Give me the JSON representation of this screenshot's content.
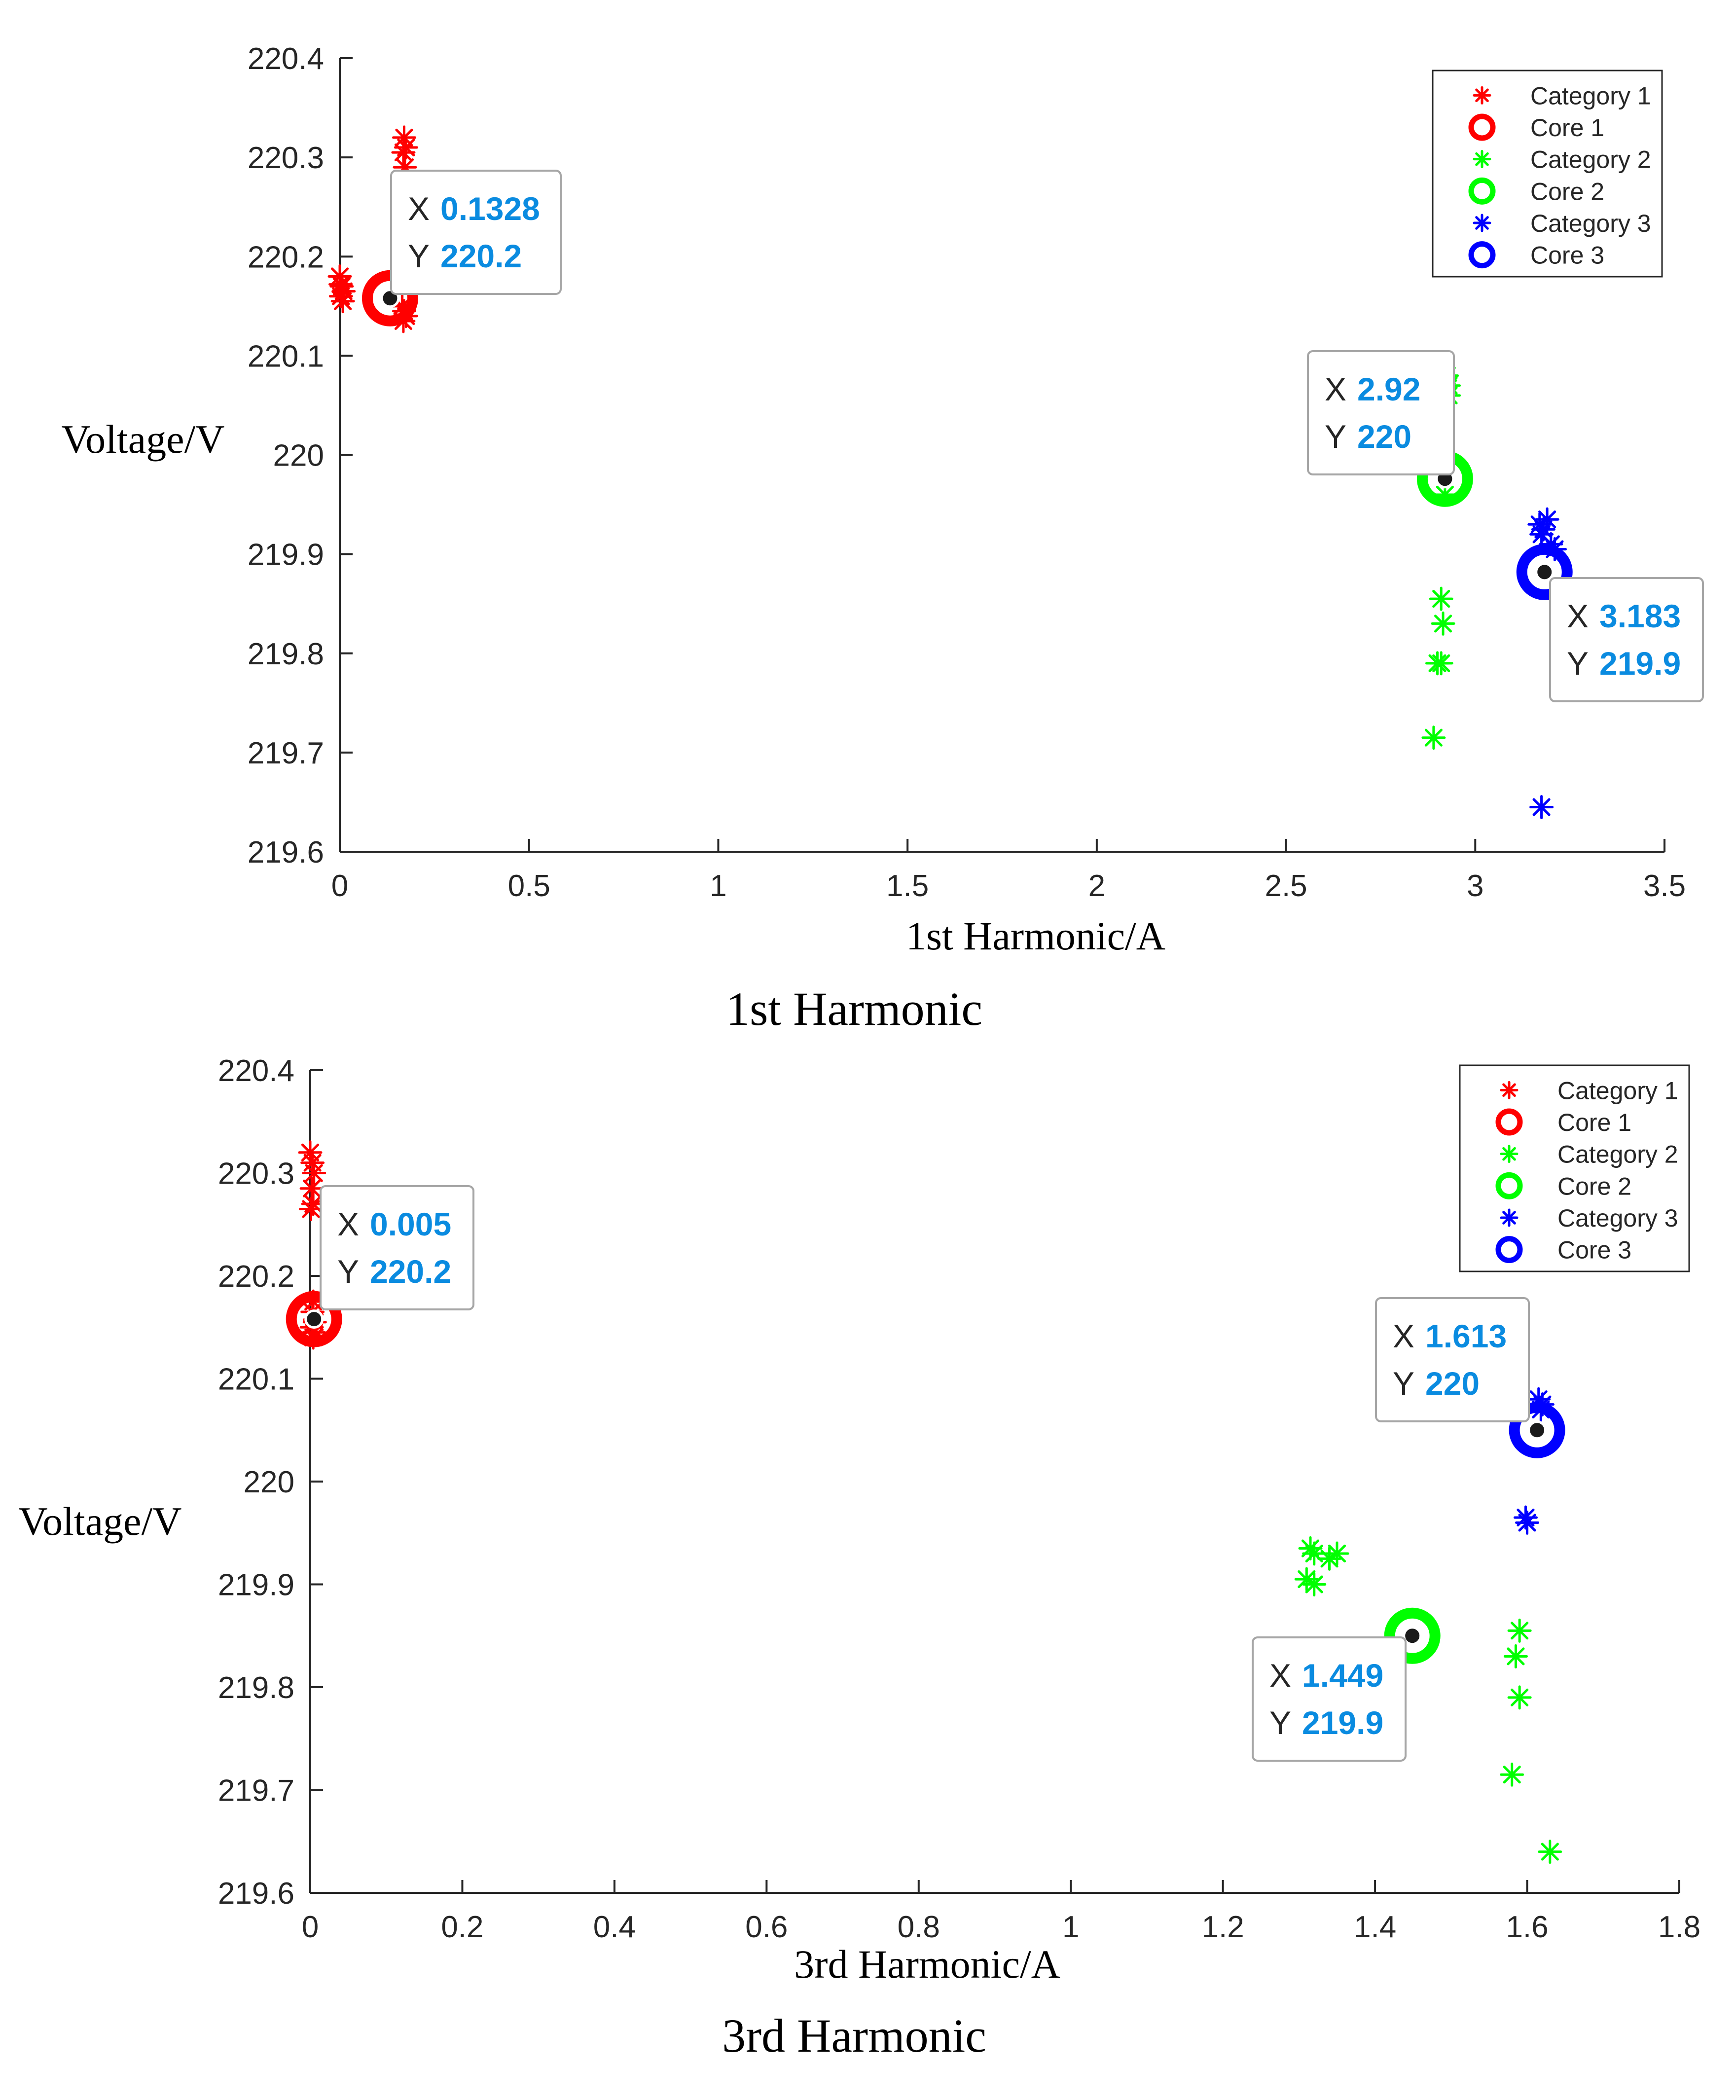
{
  "chart_data": [
    {
      "type": "scatter",
      "title": "1st Harmonic",
      "xlabel": "1st Harmonic/A",
      "ylabel": "Voltage/V",
      "xlim": [
        0,
        3.5
      ],
      "ylim": [
        219.6,
        220.4
      ],
      "xticks": [
        0,
        0.5,
        1,
        1.5,
        2,
        2.5,
        3,
        3.5
      ],
      "xtick_labels": [
        "0",
        "0.5",
        "1",
        "1.5",
        "2",
        "2.5",
        "3",
        "3.5"
      ],
      "yticks": [
        219.6,
        219.7,
        219.8,
        219.9,
        220,
        220.1,
        220.2,
        220.3,
        220.4
      ],
      "ytick_labels": [
        "219.6",
        "219.7",
        "219.8",
        "219.9",
        "220",
        "220.1",
        "220.2",
        "220.3",
        "220.4"
      ],
      "legend_position": "top-right",
      "legend": [
        "Category 1",
        "Core 1",
        "Category 2",
        "Core 2",
        "Category 3",
        "Core 3"
      ],
      "series": [
        {
          "name": "Category 1",
          "marker": "asterisk",
          "color": "#ff0000",
          "x": [
            0.0,
            0.005,
            0.01,
            0.003,
            0.008,
            0.002,
            0.17,
            0.175,
            0.168,
            0.172,
            0.165,
            0.17,
            0.175,
            0.168
          ],
          "y": [
            220.18,
            220.17,
            220.165,
            220.16,
            220.155,
            220.172,
            220.32,
            220.31,
            220.305,
            220.29,
            220.15,
            220.145,
            220.14,
            220.135
          ]
        },
        {
          "name": "Core 1",
          "marker": "circle",
          "color": "#ff0000",
          "x": [
            0.1328
          ],
          "y": [
            220.158
          ]
        },
        {
          "name": "Category 2",
          "marker": "asterisk",
          "color": "#00ff00",
          "x": [
            2.92,
            2.93,
            2.915,
            2.925,
            2.93,
            2.92,
            2.91,
            2.915,
            2.9,
            2.91,
            2.89
          ],
          "y": [
            220.075,
            220.07,
            220.065,
            220.08,
            220.06,
            219.96,
            219.855,
            219.83,
            219.79,
            219.79,
            219.715
          ]
        },
        {
          "name": "Core 2",
          "marker": "circle",
          "color": "#00ff00",
          "x": [
            2.92
          ],
          "y": [
            219.976
          ]
        },
        {
          "name": "Category 3",
          "marker": "asterisk",
          "color": "#0000ff",
          "x": [
            3.17,
            3.18,
            3.19,
            3.175,
            3.2,
            3.21,
            3.175
          ],
          "y": [
            219.93,
            219.925,
            219.935,
            219.92,
            219.91,
            219.905,
            219.645
          ]
        },
        {
          "name": "Core 3",
          "marker": "circle",
          "color": "#0000ff",
          "x": [
            3.183
          ],
          "y": [
            219.882
          ]
        }
      ],
      "datatips": [
        {
          "x_label": "X",
          "x_value": "0.1328",
          "y_label": "Y",
          "y_value": "220.2"
        },
        {
          "x_label": "X",
          "x_value": "2.92",
          "y_label": "Y",
          "y_value": "220"
        },
        {
          "x_label": "X",
          "x_value": "3.183",
          "y_label": "Y",
          "y_value": "219.9"
        }
      ]
    },
    {
      "type": "scatter",
      "title": "3rd Harmonic",
      "xlabel": "3rd Harmonic/A",
      "ylabel": "Voltage/V",
      "xlim": [
        0,
        1.8
      ],
      "ylim": [
        219.6,
        220.4
      ],
      "xticks": [
        0,
        0.2,
        0.4,
        0.6,
        0.8,
        1,
        1.2,
        1.4,
        1.6,
        1.8
      ],
      "xtick_labels": [
        "0",
        "0.2",
        "0.4",
        "0.6",
        "0.8",
        "1",
        "1.2",
        "1.4",
        "1.6",
        "1.8"
      ],
      "yticks": [
        219.6,
        219.7,
        219.8,
        219.9,
        220,
        220.1,
        220.2,
        220.3,
        220.4
      ],
      "ytick_labels": [
        "219.6",
        "219.7",
        "219.8",
        "219.9",
        "220",
        "220.1",
        "220.2",
        "220.3",
        "220.4"
      ],
      "legend_position": "top-right",
      "legend": [
        "Category 1",
        "Core 1",
        "Category 2",
        "Core 2",
        "Category 3",
        "Core 3"
      ],
      "series": [
        {
          "name": "Category 1",
          "marker": "asterisk",
          "color": "#ff0000",
          "x": [
            0.0,
            0.003,
            0.005,
            0.002,
            0.004,
            0.001,
            0.004,
            0.003,
            0.006,
            0.002,
            0.005,
            0.004
          ],
          "y": [
            220.32,
            220.31,
            220.3,
            220.285,
            220.27,
            220.265,
            220.175,
            220.165,
            220.155,
            220.15,
            220.145,
            220.14
          ]
        },
        {
          "name": "Core 1",
          "marker": "circle",
          "color": "#ff0000",
          "x": [
            0.005
          ],
          "y": [
            220.158
          ]
        },
        {
          "name": "Category 2",
          "marker": "asterisk",
          "color": "#00ff00",
          "x": [
            1.315,
            1.32,
            1.31,
            1.32,
            1.34,
            1.35,
            1.59,
            1.585,
            1.59,
            1.58,
            1.63
          ],
          "y": [
            219.935,
            219.93,
            219.905,
            219.9,
            219.925,
            219.93,
            219.855,
            219.83,
            219.79,
            219.715,
            219.64
          ]
        },
        {
          "name": "Core 2",
          "marker": "circle",
          "color": "#00ff00",
          "x": [
            1.449
          ],
          "y": [
            219.85
          ]
        },
        {
          "name": "Category 3",
          "marker": "asterisk",
          "color": "#0000ff",
          "x": [
            1.615,
            1.62,
            1.618,
            1.598,
            1.6
          ],
          "y": [
            220.08,
            220.075,
            220.07,
            219.965,
            219.96
          ]
        },
        {
          "name": "Core 3",
          "marker": "circle",
          "color": "#0000ff",
          "x": [
            1.613
          ],
          "y": [
            220.05
          ]
        }
      ],
      "datatips": [
        {
          "x_label": "X",
          "x_value": "0.005",
          "y_label": "Y",
          "y_value": "220.2"
        },
        {
          "x_label": "X",
          "x_value": "1.613",
          "y_label": "Y",
          "y_value": "220"
        },
        {
          "x_label": "X",
          "x_value": "1.449",
          "y_label": "Y",
          "y_value": "219.9"
        }
      ]
    }
  ],
  "colors": {
    "axis": "#262626",
    "datatip_value": "#0a8be0",
    "datatip_label": "#262626",
    "datatip_border": "#a6a6a6",
    "legend_border": "#262626"
  }
}
